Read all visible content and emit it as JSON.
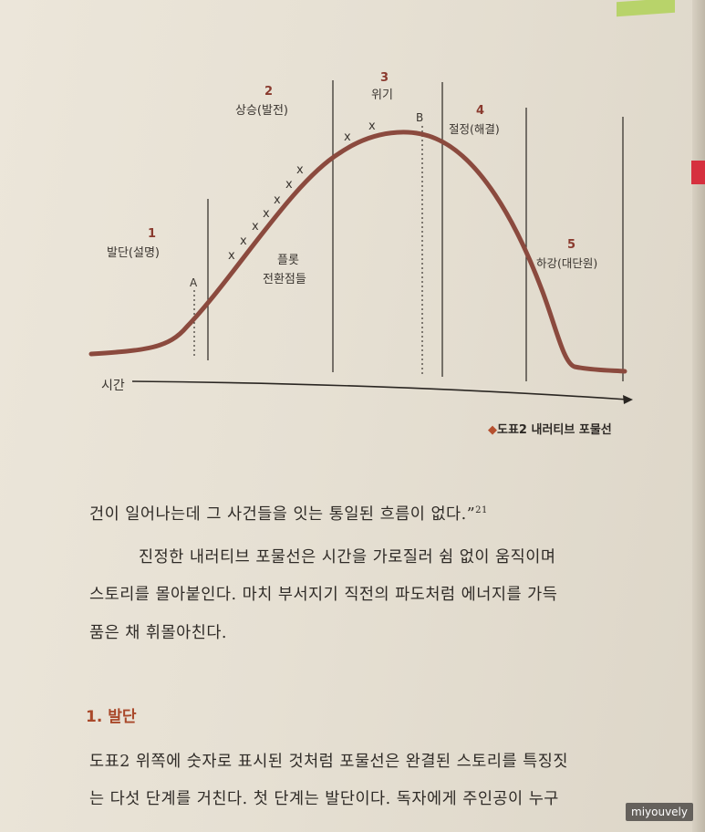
{
  "diagram": {
    "stages": [
      {
        "num": "1",
        "label": "발단(설명)"
      },
      {
        "num": "2",
        "label": "상승(발전)"
      },
      {
        "num": "3",
        "label": "위기"
      },
      {
        "num": "4",
        "label": "절정(해결)"
      },
      {
        "num": "5",
        "label": "하강(대단원)"
      }
    ],
    "marker_a": "A",
    "marker_b": "B",
    "plot_points_label_line1": "플롯",
    "plot_points_label_line2": "전환점들",
    "cross_mark": "x",
    "time_label": "시간",
    "curve_color": "#8b4a3e"
  },
  "caption": {
    "diamond": "◆",
    "text": "도표2  내러티브 포물선"
  },
  "body": {
    "line1": "건이 일어나는데 그 사건들을 잇는 통일된 흐름이 없다.”",
    "footnote": "21",
    "para2_line1": "진정한 내러티브 포물선은 시간을 가로질러 쉼 없이 움직이며",
    "para2_line2": "스토리를 몰아붙인다. 마치 부서지기 직전의 파도처럼 에너지를 가득",
    "para2_line3": "품은 채 휘몰아친다.",
    "heading": "1. 발단",
    "para3_line1": "도표2 위쪽에 숫자로 표시된 것처럼 포물선은 완결된 스토리를 특징짓",
    "para3_line2": "는 다섯 단계를 거친다. 첫 단계는 발단이다. 독자에게 주인공이 누구"
  },
  "watermark": "miyouvely"
}
